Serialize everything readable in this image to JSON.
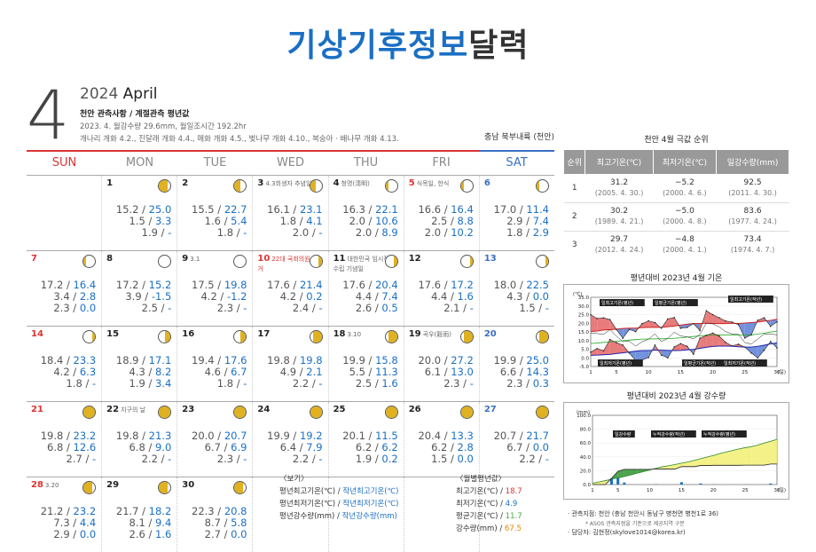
{
  "title": {
    "part1": "기상기후정보",
    "part2": "달력"
  },
  "month": "4",
  "header": {
    "year": "2024",
    "month_name": "April",
    "line1": "천안 관측사항 / 계절관측 평년값",
    "line2": "2023. 4. 월강수량 29.6mm, 월일조시간 192.2hr",
    "line3": "개나리 개화 4.2., 진달래 개화 4.4., 매화 개화 4.5., 벚나무 개화 4.10., 복숭아 · 배나무 개화 4.13."
  },
  "region": "충남 북부내륙 (천안)",
  "weekdays": [
    "SUN",
    "MON",
    "TUE",
    "WED",
    "THU",
    "FRI",
    "SAT"
  ],
  "weeks": [
    [
      null,
      {
        "day": "1",
        "l1": "15.2 / ",
        "n1": "25.0",
        "l2": "1.5 / ",
        "n2": "3.3",
        "l3": "1.9 / ",
        "n3": "-",
        "moon": "waning-gibbous"
      },
      {
        "day": "2",
        "l1": "15.5 / ",
        "n1": "22.7",
        "l2": "1.6 / ",
        "n2": "5.4",
        "l3": "1.8 / ",
        "n3": "-",
        "moon": "last-quarter"
      },
      {
        "day": "3",
        "note": "4.3희생자 추념일",
        "l1": "16.1 / ",
        "n1": "23.1",
        "l2": "1.8 / ",
        "n2": "4.1",
        "l3": "2.0 / ",
        "n3": "-",
        "moon": "last-quarter"
      },
      {
        "day": "4",
        "note": "청명(淸明)",
        "l1": "16.3 / ",
        "n1": "22.1",
        "l2": "2.0 / ",
        "n2": "10.6",
        "l3": "2.0 / ",
        "n3": "8.9",
        "moon": "waning-crescent"
      },
      {
        "day": "5",
        "note": "식목일, 한식",
        "l1": "16.6 / ",
        "n1": "16.4",
        "l2": "2.5 / ",
        "n2": "8.8",
        "l3": "2.0 / ",
        "n3": "10.2",
        "moon": "waning-crescent"
      },
      {
        "day": "6",
        "l1": "17.0 / ",
        "n1": "11.4",
        "l2": "2.9 / ",
        "n2": "7.4",
        "l3": "1.8 / ",
        "n3": "2.9",
        "moon": "waning-crescent"
      }
    ],
    [
      {
        "day": "7",
        "l1": "17.2 / ",
        "n1": "16.4",
        "l2": "3.4 / ",
        "n2": "2.8",
        "l3": "2.3 / ",
        "n3": "0.0",
        "moon": "waning-crescent"
      },
      {
        "day": "8",
        "l1": "17.2 / ",
        "n1": "15.2",
        "l2": "3.9 / ",
        "n2": "-1.5",
        "l3": "2.5 / ",
        "n3": "-",
        "moon": "new"
      },
      {
        "day": "9",
        "note": "3.1",
        "l1": "17.5 / ",
        "n1": "19.8",
        "l2": "4.2 / ",
        "n2": "-1.2",
        "l3": "2.3 / ",
        "n3": "-",
        "moon": "new"
      },
      {
        "day": "10",
        "note": "22대 국회의원 선거",
        "l1": "17.6 / ",
        "n1": "21.4",
        "l2": "4.2 / ",
        "n2": "0.2",
        "l3": "2.4 / ",
        "n3": "-",
        "moon": "waxing-crescent"
      },
      {
        "day": "11",
        "note": "대한민국 임시정부 수립 기념일",
        "l1": "17.6 / ",
        "n1": "20.4",
        "l2": "4.4 / ",
        "n2": "7.4",
        "l3": "2.6 / ",
        "n3": "0.5",
        "moon": "waxing-crescent"
      },
      {
        "day": "12",
        "l1": "17.6 / ",
        "n1": "17.2",
        "l2": "4.4 / ",
        "n2": "1.6",
        "l3": "2.1 / ",
        "n3": "-",
        "moon": "waxing-crescent"
      },
      {
        "day": "13",
        "l1": "18.0 / ",
        "n1": "22.5",
        "l2": "4.3 / ",
        "n2": "0.0",
        "l3": "1.5 / ",
        "n3": "-",
        "moon": "waxing-crescent"
      }
    ],
    [
      {
        "day": "14",
        "l1": "18.4 / ",
        "n1": "23.3",
        "l2": "4.2 / ",
        "n2": "6.3",
        "l3": "1.8 / ",
        "n3": "-",
        "moon": "waxing-crescent"
      },
      {
        "day": "15",
        "l1": "18.9 / ",
        "n1": "17.1",
        "l2": "4.3 / ",
        "n2": "8.2",
        "l3": "1.9 / ",
        "n3": "3.4",
        "moon": "first-quarter"
      },
      {
        "day": "16",
        "l1": "19.4 / ",
        "n1": "17.6",
        "l2": "4.6 / ",
        "n2": "6.7",
        "l3": "1.8 / ",
        "n3": "-",
        "moon": "first-quarter"
      },
      {
        "day": "17",
        "l1": "19.8 / ",
        "n1": "19.8",
        "l2": "4.9 / ",
        "n2": "2.1",
        "l3": "2.2 / ",
        "n3": "-",
        "moon": "waxing-gibbous"
      },
      {
        "day": "18",
        "note": "3.10",
        "l1": "19.9 / ",
        "n1": "15.8",
        "l2": "5.5 / ",
        "n2": "11.3",
        "l3": "2.5 / ",
        "n3": "1.6",
        "moon": "waxing-gibbous"
      },
      {
        "day": "19",
        "note": "곡우(穀雨)",
        "l1": "20.0 / ",
        "n1": "27.2",
        "l2": "6.1 / ",
        "n2": "13.0",
        "l3": "2.3 / ",
        "n3": "-",
        "moon": "waxing-gibbous"
      },
      {
        "day": "20",
        "l1": "19.9 / ",
        "n1": "25.0",
        "l2": "6.6 / ",
        "n2": "14.3",
        "l3": "2.3 / ",
        "n3": "0.3",
        "moon": "waxing-gibbous"
      }
    ],
    [
      {
        "day": "21",
        "l1": "19.8 / ",
        "n1": "23.2",
        "l2": "6.8 / ",
        "n2": "12.6",
        "l3": "2.7 / ",
        "n3": "-",
        "moon": "full"
      },
      {
        "day": "22",
        "note": "지구의 날",
        "l1": "19.8 / ",
        "n1": "21.3",
        "l2": "6.8 / ",
        "n2": "9.0",
        "l3": "2.2 / ",
        "n3": "-",
        "moon": "full"
      },
      {
        "day": "23",
        "l1": "20.0 / ",
        "n1": "20.7",
        "l2": "6.7 / ",
        "n2": "6.9",
        "l3": "2.3 / ",
        "n3": "-",
        "moon": "full"
      },
      {
        "day": "24",
        "l1": "19.9 / ",
        "n1": "19.2",
        "l2": "6.4 / ",
        "n2": "7.9",
        "l3": "2.2 / ",
        "n3": "-",
        "moon": "full"
      },
      {
        "day": "25",
        "l1": "20.1 / ",
        "n1": "11.5",
        "l2": "6.2 / ",
        "n2": "6.2",
        "l3": "1.9 / ",
        "n3": "0.2",
        "moon": "full"
      },
      {
        "day": "26",
        "l1": "20.4 / ",
        "n1": "13.3",
        "l2": "6.2 / ",
        "n2": "2.8",
        "l3": "1.5 / ",
        "n3": "0.0",
        "moon": "full"
      },
      {
        "day": "27",
        "l1": "20.7 / ",
        "n1": "21.7",
        "l2": "6.7 / ",
        "n2": "0.0",
        "l3": "2.2 / ",
        "n3": "-",
        "moon": "full"
      }
    ],
    [
      {
        "day": "28",
        "note": "3.20",
        "l1": "21.2 / ",
        "n1": "23.2",
        "l2": "7.3 / ",
        "n2": "4.4",
        "l3": "2.9 / ",
        "n3": "0.0",
        "moon": "waning-gibbous"
      },
      {
        "day": "29",
        "l1": "21.7 / ",
        "n1": "18.2",
        "l2": "8.1 / ",
        "n2": "9.4",
        "l3": "2.6 / ",
        "n3": "1.6",
        "moon": "waning-gibbous"
      },
      {
        "day": "30",
        "l1": "22.3 / ",
        "n1": "20.8",
        "l2": "8.7 / ",
        "n2": "5.8",
        "l3": "2.7 / ",
        "n3": "0.0",
        "moon": "waning-gibbous"
      },
      null,
      null,
      null,
      null
    ]
  ],
  "legend": {
    "title": "〈보기〉",
    "r1a": "평년최고기온(℃) / ",
    "r1b": "작년최고기온(℃)",
    "r2a": "평년최저기온(℃) / ",
    "r2b": "작년최저기온(℃)",
    "r3a": "평년강수량(mm) / ",
    "r3b": "작년강수량(mm)"
  },
  "monthly": {
    "title": "〈월별평년값〉",
    "r1": "최고기온(℃) / ",
    "v1": "18.7",
    "r2": "최저기온(℃) / ",
    "v2": "4.9",
    "r3": "평균기온(℃) / ",
    "v3": "11.7",
    "r4": "강수량(mm) / ",
    "v4": "67.5"
  },
  "rank": {
    "title": "천안 4월 극값 순위",
    "headers": [
      "순위",
      "최고기온(℃)",
      "최저기온(℃)",
      "일강수량(mm)"
    ],
    "rows": [
      {
        "r": "1",
        "a": "31.2",
        "ad": "(2005. 4. 30.)",
        "b": "−5.2",
        "bd": "(2000. 4. 6.)",
        "c": "92.5",
        "cd": "(2011. 4. 30.)"
      },
      {
        "r": "2",
        "a": "30.2",
        "ad": "(1989. 4. 21.)",
        "b": "−5.0",
        "bd": "(2000. 4. 8.)",
        "c": "83.6",
        "cd": "(1977. 4. 24.)"
      },
      {
        "r": "3",
        "a": "29.7",
        "ad": "(2012. 4. 24.)",
        "b": "−4.8",
        "bd": "(2000. 4. 1.)",
        "c": "73.4",
        "cd": "(1974. 4. 7.)"
      }
    ]
  },
  "chart1": {
    "title": "평년대비 2023년 4월 기온",
    "unit": "(℃)",
    "xunit": "(일)",
    "labels": [
      "일최고기온(평년)",
      "일평균기온(평년)",
      "일최고기온(작년)",
      "일최저기온(평년)",
      "일평균기온(작년)",
      "일최저기온(작년)"
    ]
  },
  "chart2": {
    "title": "평년대비 2023년 4월 강수량",
    "unit": "(mm)",
    "xunit": "(일)",
    "labels": [
      "일강수량",
      "누적강수량(작년)",
      "누적강수량(평년)"
    ]
  },
  "chart_data": [
    {
      "type": "line",
      "title": "평년대비 2023년 4월 기온",
      "ylabel": "(℃)",
      "xlabel": "(일)",
      "ylim": [
        -5,
        35
      ],
      "yticks": [
        "35.0",
        "30.0",
        "25.0",
        "20.0",
        "15.0",
        "10.0",
        "5.0",
        "0.0",
        "-5.0"
      ],
      "xticks": [
        "1",
        "5",
        "10",
        "15",
        "20",
        "25",
        "30"
      ],
      "x": [
        1,
        2,
        3,
        4,
        5,
        6,
        7,
        8,
        9,
        10,
        11,
        12,
        13,
        14,
        15,
        16,
        17,
        18,
        19,
        20,
        21,
        22,
        23,
        24,
        25,
        26,
        27,
        28,
        29,
        30
      ],
      "series": [
        {
          "name": "일최고기온(평년)",
          "values": [
            15.2,
            15.5,
            16.1,
            16.3,
            16.6,
            17.0,
            17.2,
            17.2,
            17.5,
            17.6,
            17.6,
            17.6,
            18.0,
            18.4,
            18.9,
            19.4,
            19.8,
            19.9,
            20.0,
            19.9,
            19.8,
            19.8,
            20.0,
            19.9,
            20.1,
            20.4,
            20.7,
            21.2,
            21.7,
            22.3
          ]
        },
        {
          "name": "일최고기온(작년)",
          "values": [
            25.0,
            22.7,
            23.1,
            22.1,
            16.4,
            11.4,
            16.4,
            15.2,
            19.8,
            21.4,
            20.4,
            17.2,
            22.5,
            23.3,
            17.1,
            17.6,
            19.8,
            15.8,
            27.2,
            25.0,
            23.2,
            21.3,
            20.7,
            19.2,
            11.5,
            13.3,
            21.7,
            23.2,
            18.2,
            20.8
          ]
        },
        {
          "name": "일최저기온(평년)",
          "values": [
            1.5,
            1.6,
            1.8,
            2.0,
            2.5,
            2.9,
            3.4,
            3.9,
            4.2,
            4.2,
            4.4,
            4.4,
            4.3,
            4.2,
            4.3,
            4.6,
            4.9,
            5.5,
            6.1,
            6.6,
            6.8,
            6.8,
            6.7,
            6.4,
            6.2,
            6.2,
            6.7,
            7.3,
            8.1,
            8.7
          ]
        },
        {
          "name": "일최저기온(작년)",
          "values": [
            3.3,
            5.4,
            4.1,
            10.6,
            8.8,
            7.4,
            2.8,
            -1.5,
            -1.2,
            0.2,
            7.4,
            1.6,
            0.0,
            6.3,
            8.2,
            6.7,
            2.1,
            11.3,
            13.0,
            14.3,
            12.6,
            9.0,
            6.9,
            7.9,
            6.2,
            2.8,
            0.0,
            4.4,
            9.4,
            5.8
          ]
        }
      ]
    },
    {
      "type": "area",
      "title": "평년대비 2023년 4월 강수량",
      "ylabel": "(mm)",
      "xlabel": "(일)",
      "ylim": [
        0,
        100
      ],
      "yticks": [
        "100.0",
        "80.0",
        "60.0",
        "40.0",
        "20.0",
        "0.0"
      ],
      "xticks": [
        "1",
        "5",
        "10",
        "15",
        "20",
        "25",
        "30"
      ],
      "x": [
        1,
        2,
        3,
        4,
        5,
        6,
        7,
        8,
        9,
        10,
        11,
        12,
        13,
        14,
        15,
        16,
        17,
        18,
        19,
        20,
        21,
        22,
        23,
        24,
        25,
        26,
        27,
        28,
        29,
        30
      ],
      "series": [
        {
          "name": "일강수량",
          "values": [
            0,
            0,
            0,
            8.9,
            10.2,
            2.9,
            0,
            0,
            0,
            0,
            0.5,
            0,
            0,
            0,
            3.4,
            0,
            0,
            1.6,
            0,
            0.3,
            0,
            0,
            0,
            0,
            0.2,
            0,
            0,
            0,
            1.6,
            0
          ]
        },
        {
          "name": "누적강수량(작년)",
          "values": [
            0,
            0,
            0,
            8.9,
            19.1,
            22.0,
            22.0,
            22.0,
            22.0,
            22.0,
            22.5,
            22.5,
            22.5,
            22.5,
            25.9,
            25.9,
            25.9,
            27.5,
            27.5,
            27.8,
            27.8,
            27.8,
            27.8,
            27.8,
            28.0,
            28.0,
            28.0,
            28.0,
            29.6,
            29.6
          ]
        },
        {
          "name": "누적강수량(평년)",
          "values": [
            1.9,
            3.7,
            5.7,
            7.7,
            9.7,
            11.5,
            13.8,
            16.3,
            18.6,
            21.0,
            23.6,
            25.7,
            27.2,
            29.0,
            30.9,
            32.7,
            34.9,
            37.4,
            39.7,
            42.0,
            44.7,
            46.9,
            49.2,
            51.4,
            53.3,
            54.8,
            57.0,
            59.9,
            62.5,
            65.2
          ]
        }
      ]
    }
  ],
  "footnotes": {
    "f1": "· 관측지점: 천안 (충남 천안시 동남구 병천면 병천1로 36)",
    "f2": "* ASOS 관측지점을 기준으로 제공지역 구분",
    "f3": "· 담당자: 김현정(skylove1014@korea.kr)"
  },
  "colors": {
    "accent": "#1a6fc4",
    "red": "#d33",
    "moon": "#e0b120"
  }
}
